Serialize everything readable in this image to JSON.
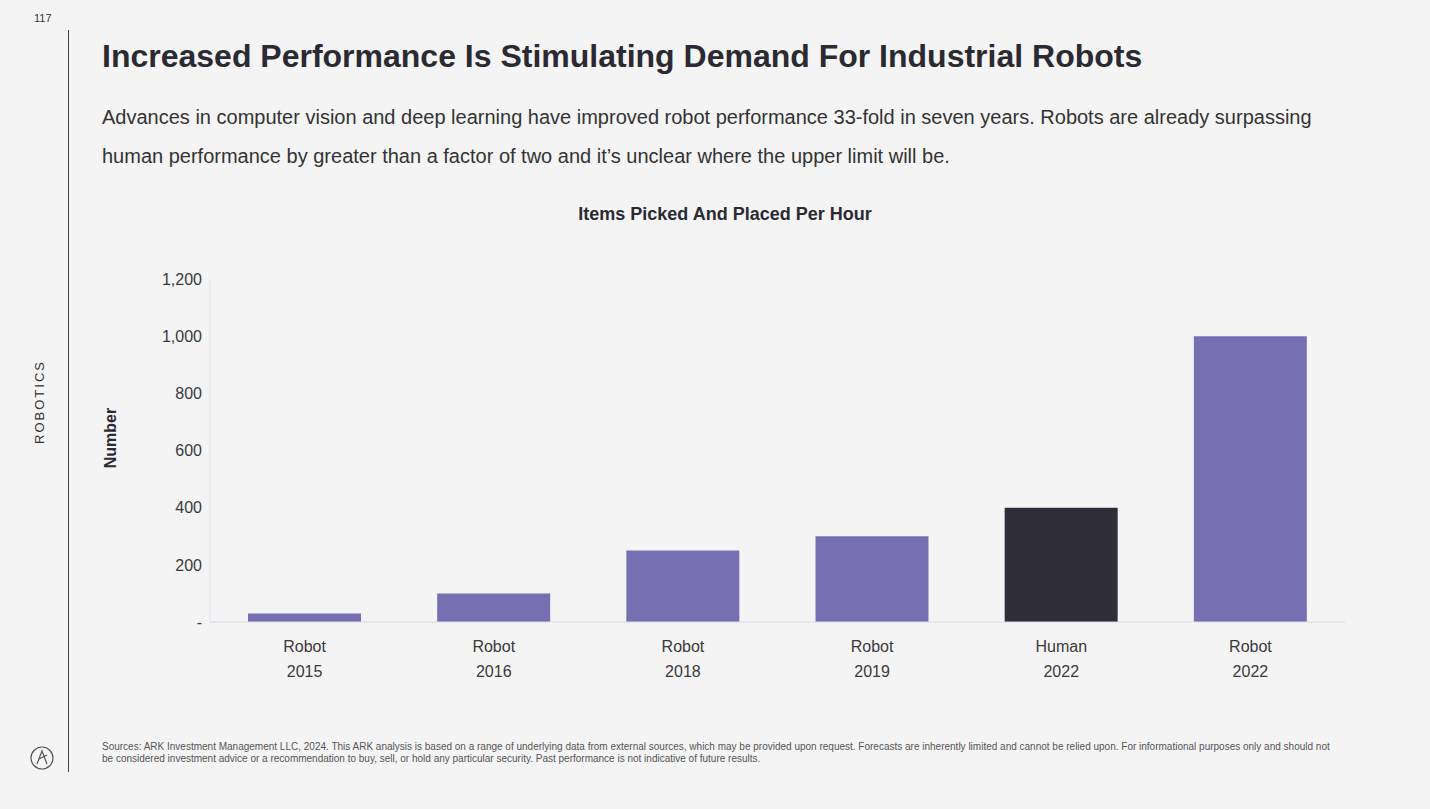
{
  "page_number": "117",
  "section": "ROBOTICS",
  "title": "Increased Performance Is Stimulating Demand For Industrial Robots",
  "subtitle": "Advances in computer vision and deep learning have improved robot performance 33-fold in seven years. Robots are already surpassing human performance by greater than a factor of two and it’s unclear where the upper limit will be.",
  "sources": "Sources: ARK Investment Management LLC, 2024. This ARK analysis is based on a range of underlying data from external sources, which may be provided upon request. Forecasts are inherently limited and cannot be relied upon. For informational purposes only and should not be considered investment advice or a recommendation to buy, sell, or hold any particular security. Past performance is not indicative of future results.",
  "chart_data": {
    "type": "bar",
    "title": "Items Picked And Placed Per Hour",
    "y_label": "Number",
    "categories": [
      "Robot\n2015",
      "Robot\n2016",
      "Robot\n2018",
      "Robot\n2019",
      "Human\n2022",
      "Robot\n2022"
    ],
    "values": [
      30,
      100,
      250,
      300,
      400,
      1000
    ],
    "colors": [
      "#7670b3",
      "#7670b3",
      "#7670b3",
      "#7670b3",
      "#2e2d38",
      "#7670b3"
    ],
    "ylim": [
      0,
      1200
    ],
    "yticks": [
      {
        "value": 0,
        "label": "-"
      },
      200,
      400,
      600,
      800,
      {
        "value": 1000,
        "label": "1,000"
      },
      {
        "value": 1200,
        "label": "1,200"
      }
    ],
    "grid": false
  }
}
